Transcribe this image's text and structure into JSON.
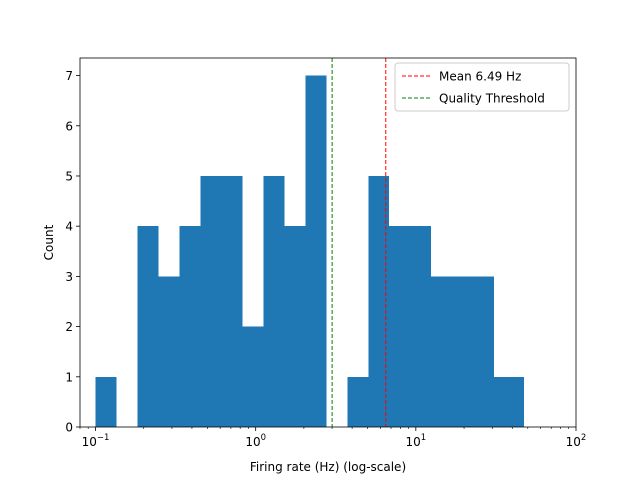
{
  "chart_data": {
    "type": "bar",
    "title": "",
    "xlabel": "Firing rate (Hz) (log-scale)",
    "ylabel": "Count",
    "x_scale": "log",
    "xlim": [
      0.08,
      100
    ],
    "ylim": [
      0,
      7.35
    ],
    "grid": false,
    "legend_position": "top-right",
    "bar_color": "#1f77b4",
    "bins": [
      {
        "x0": 0.1,
        "x1": 0.135,
        "count": 1
      },
      {
        "x0": 0.135,
        "x1": 0.183,
        "count": 0
      },
      {
        "x0": 0.183,
        "x1": 0.247,
        "count": 4
      },
      {
        "x0": 0.247,
        "x1": 0.334,
        "count": 3
      },
      {
        "x0": 0.334,
        "x1": 0.452,
        "count": 4
      },
      {
        "x0": 0.452,
        "x1": 0.611,
        "count": 5
      },
      {
        "x0": 0.611,
        "x1": 0.826,
        "count": 5
      },
      {
        "x0": 0.826,
        "x1": 1.117,
        "count": 2
      },
      {
        "x0": 1.117,
        "x1": 1.51,
        "count": 5
      },
      {
        "x0": 1.51,
        "x1": 2.042,
        "count": 4
      },
      {
        "x0": 2.042,
        "x1": 2.76,
        "count": 7
      },
      {
        "x0": 2.76,
        "x1": 3.732,
        "count": 0
      },
      {
        "x0": 3.732,
        "x1": 5.046,
        "count": 1
      },
      {
        "x0": 5.046,
        "x1": 6.822,
        "count": 5
      },
      {
        "x0": 6.822,
        "x1": 9.223,
        "count": 4
      },
      {
        "x0": 9.223,
        "x1": 12.47,
        "count": 4
      },
      {
        "x0": 12.47,
        "x1": 16.86,
        "count": 3
      },
      {
        "x0": 16.86,
        "x1": 22.8,
        "count": 3
      },
      {
        "x0": 22.8,
        "x1": 30.82,
        "count": 3
      },
      {
        "x0": 30.82,
        "x1": 41.67,
        "count": 1
      },
      {
        "x0": 41.67,
        "x1": 47.5,
        "count": 1
      }
    ],
    "x_ticks": [
      {
        "value": 0.1,
        "base": "10",
        "exp": "−1"
      },
      {
        "value": 1,
        "base": "10",
        "exp": "0"
      },
      {
        "value": 10,
        "base": "10",
        "exp": "1"
      },
      {
        "value": 100,
        "base": "10",
        "exp": "2"
      }
    ],
    "y_ticks": [
      0,
      1,
      2,
      3,
      4,
      5,
      6,
      7
    ],
    "vlines": [
      {
        "name": "Mean 6.49 Hz",
        "x": 6.49,
        "color": "#ff0000"
      },
      {
        "name": "Quality Threshold",
        "x": 3.0,
        "color": "#008000"
      }
    ]
  }
}
